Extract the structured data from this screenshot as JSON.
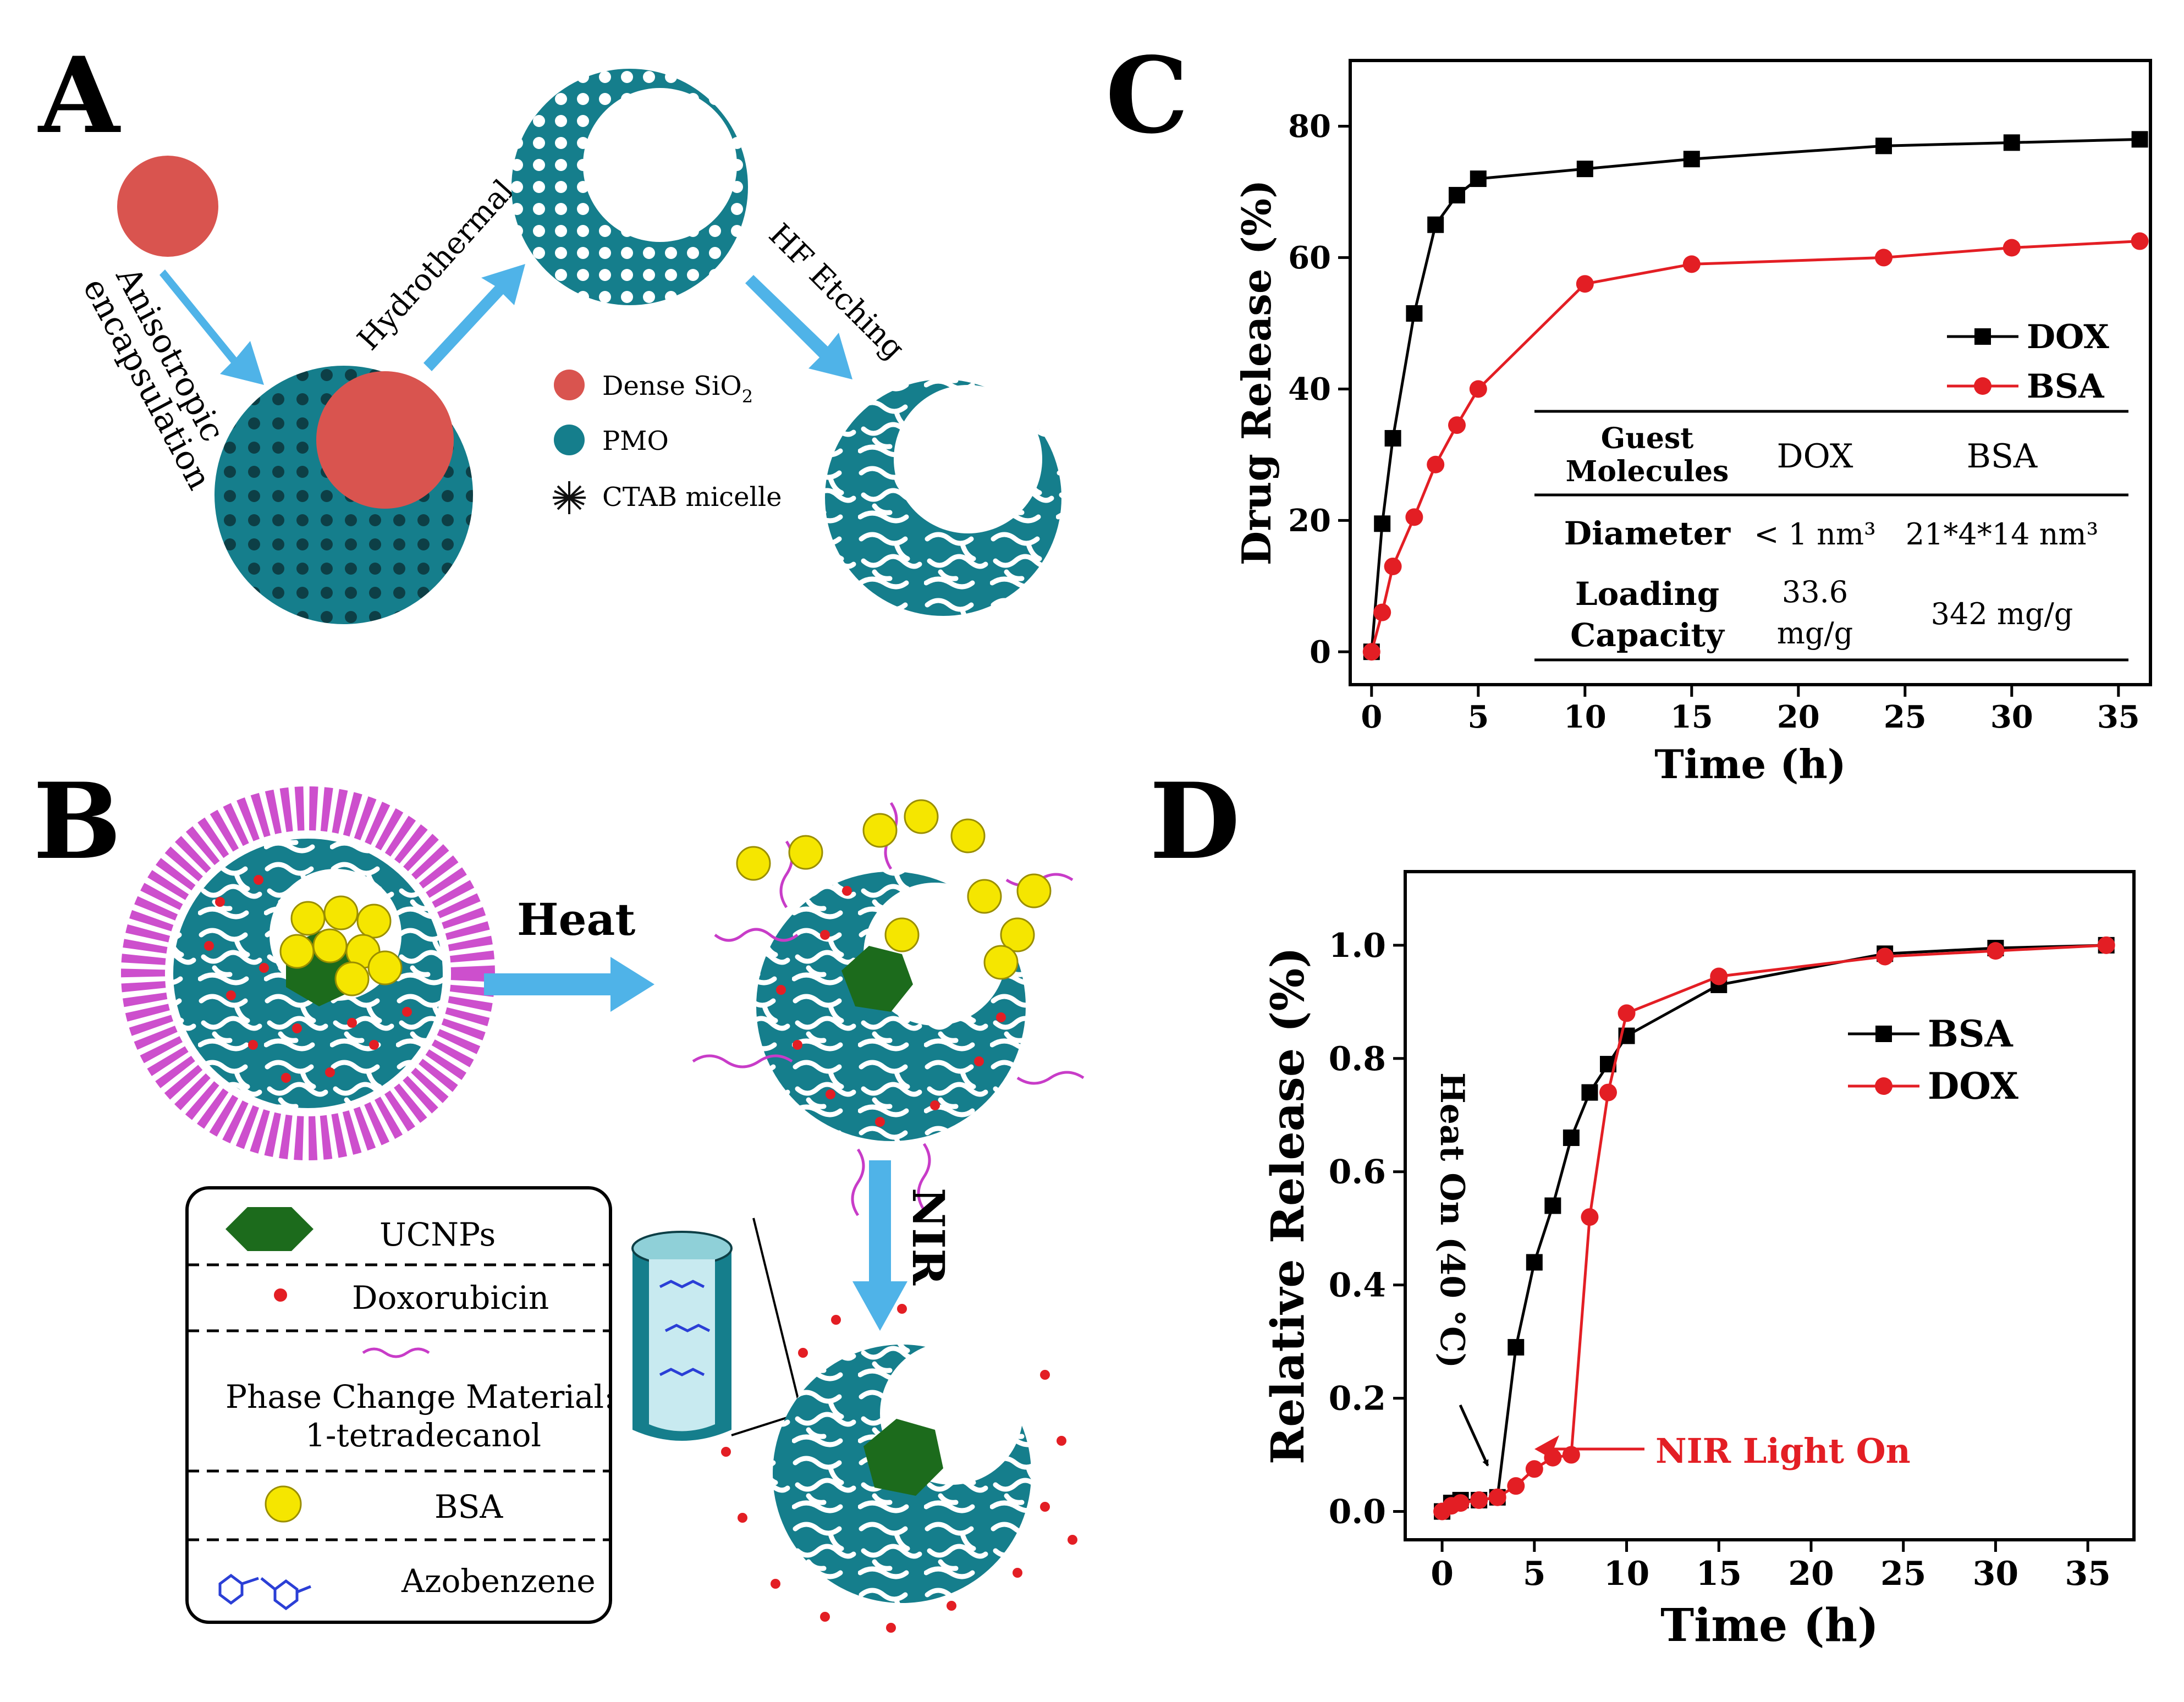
{
  "panels": {
    "A": {
      "letter": "A",
      "label_encapsulation_1": "Anisotropic",
      "label_encapsulation_2": "encapsulation",
      "label_hydrothermal": "Hydrothermal",
      "label_hf": "HF Etching",
      "legend": [
        {
          "text": "Dense SiO",
          "sub": "2",
          "color": "#d9544f"
        },
        {
          "text": "PMO",
          "sub": "",
          "color": "#157e8c"
        },
        {
          "text": "CTAB micelle",
          "sub": "",
          "color": "#111111"
        }
      ]
    },
    "B": {
      "letter": "B",
      "label_heat": "Heat",
      "label_nir": "NIR",
      "legend": [
        {
          "text": "UCNPs"
        },
        {
          "text": "Doxorubicin"
        },
        {
          "text": "Phase Change Material:"
        },
        {
          "text": "1-tetradecanol"
        },
        {
          "text": "BSA"
        },
        {
          "text": "Azobenzene"
        }
      ],
      "colors": {
        "pmo": "#157e8c",
        "dox": "#e31e24",
        "pcm": "#c83cc8",
        "bsa": "#f5e600",
        "ucnp": "#1c6b1c",
        "azo": "#2b3fd6"
      }
    },
    "C": {
      "letter": "C",
      "table": {
        "header_1": "Guest",
        "header_2": "Molecules",
        "col_dox": "DOX",
        "col_bsa": "BSA",
        "row1_label": "Diameter",
        "row1_dox": "< 1 nm³",
        "row1_bsa": "21*4*14 nm³",
        "row2_label_1": "Loading",
        "row2_label_2": "Capacity",
        "row2_dox_1": "33.6",
        "row2_dox_2": "mg/g",
        "row2_bsa": "342 mg/g"
      }
    },
    "D": {
      "letter": "D",
      "annotation_heat": "Heat On (40 °C)",
      "annotation_nir": "NIR Light On"
    }
  },
  "chart_data": [
    {
      "type": "line",
      "panel": "C",
      "xlabel": "Time (h)",
      "ylabel": "Drug Release (%)",
      "xlim": [
        -1,
        36.5
      ],
      "ylim": [
        -5,
        90
      ],
      "xticks": [
        0,
        5,
        10,
        15,
        20,
        25,
        30,
        35
      ],
      "yticks": [
        0,
        20,
        40,
        60,
        80
      ],
      "legend_position": "right-middle",
      "series": [
        {
          "name": "DOX",
          "color": "#000000",
          "marker": "square",
          "x": [
            0,
            0.5,
            1,
            2,
            3,
            4,
            5,
            10,
            15,
            24,
            30,
            36
          ],
          "y": [
            0,
            19.5,
            32.5,
            51.5,
            65,
            69.5,
            72,
            73.5,
            75,
            77,
            77.5,
            78
          ]
        },
        {
          "name": "BSA",
          "color": "#e31e24",
          "marker": "circle",
          "x": [
            0,
            0.5,
            1,
            2,
            3,
            4,
            5,
            10,
            15,
            24,
            30,
            36
          ],
          "y": [
            0,
            6,
            13,
            20.5,
            28.5,
            34.5,
            40,
            56,
            59,
            60,
            61.5,
            62.5
          ]
        }
      ]
    },
    {
      "type": "line",
      "panel": "D",
      "xlabel": "Time (h)",
      "ylabel": "Relative Release (%)",
      "xlim": [
        -2,
        37.5
      ],
      "ylim": [
        -0.05,
        1.13
      ],
      "xticks": [
        0,
        5,
        10,
        15,
        20,
        25,
        30,
        35
      ],
      "yticks": [
        0.0,
        0.2,
        0.4,
        0.6,
        0.8,
        1.0
      ],
      "tick_labels": [
        "0.0",
        "0.2",
        "0.4",
        "0.6",
        "0.8",
        "1.0"
      ],
      "legend_position": "right-middle",
      "series": [
        {
          "name": "BSA",
          "color": "#000000",
          "marker": "square",
          "x": [
            0,
            0.5,
            1,
            2,
            3,
            4,
            5,
            6,
            7,
            8,
            9,
            10,
            15,
            24,
            30,
            36
          ],
          "y": [
            0,
            0.015,
            0.02,
            0.02,
            0.025,
            0.29,
            0.44,
            0.54,
            0.66,
            0.74,
            0.79,
            0.84,
            0.93,
            0.985,
            0.995,
            1.0
          ]
        },
        {
          "name": "DOX",
          "color": "#e31e24",
          "marker": "circle",
          "x": [
            0,
            0.5,
            1,
            2,
            3,
            4,
            5,
            6,
            7,
            8,
            9,
            10,
            15,
            24,
            30,
            36
          ],
          "y": [
            0,
            0.01,
            0.015,
            0.02,
            0.025,
            0.045,
            0.075,
            0.095,
            0.1,
            0.52,
            0.74,
            0.88,
            0.945,
            0.98,
            0.99,
            1.0
          ]
        }
      ]
    }
  ]
}
